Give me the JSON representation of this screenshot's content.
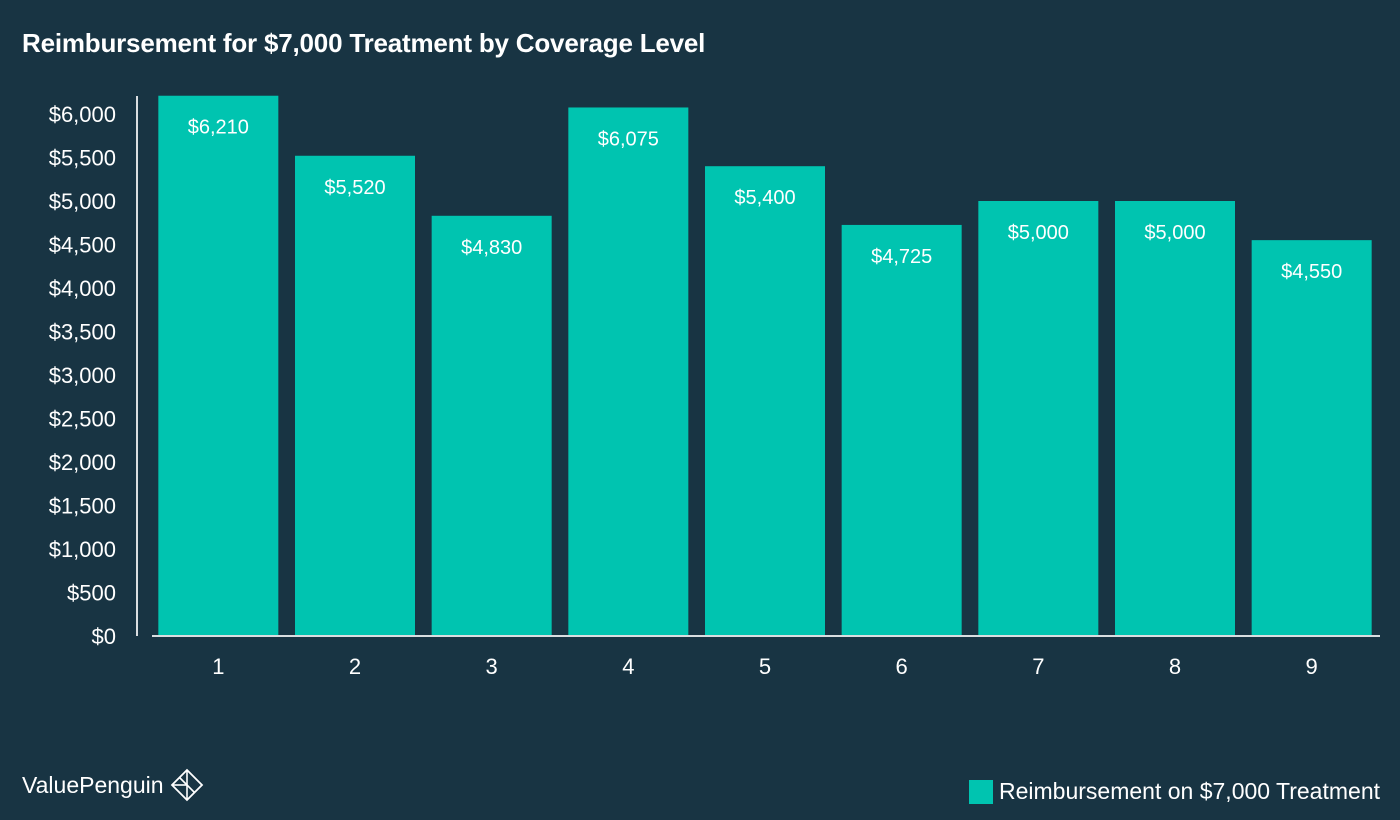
{
  "colors": {
    "background": "#183443",
    "bar": "#00c4b0",
    "text": "#ffffff",
    "axis": "#d9dde0"
  },
  "brand": {
    "name": "ValuePenguin",
    "icon": "diamond-logo-icon"
  },
  "chart_data": {
    "type": "bar",
    "title": "Reimbursement for $7,000 Treatment by Coverage Level",
    "xlabel": "",
    "ylabel": "",
    "categories": [
      "1",
      "2",
      "3",
      "4",
      "5",
      "6",
      "7",
      "8",
      "9"
    ],
    "series": [
      {
        "name": "Reimbursement on $7,000 Treatment",
        "values": [
          6210,
          5520,
          4830,
          6075,
          5400,
          4725,
          5000,
          5000,
          4550
        ],
        "data_labels": [
          "$6,210",
          "$5,520",
          "$4,830",
          "$6,075",
          "$5,400",
          "$4,725",
          "$5,000",
          "$5,000",
          "$4,550"
        ]
      }
    ],
    "ylim": [
      0,
      6000
    ],
    "yticks": [
      0,
      500,
      1000,
      1500,
      2000,
      2500,
      3000,
      3500,
      4000,
      4500,
      5000,
      5500,
      6000
    ],
    "ytick_labels": [
      "$0",
      "$500",
      "$1,000",
      "$1,500",
      "$2,000",
      "$2,500",
      "$3,000",
      "$3,500",
      "$4,000",
      "$4,500",
      "$5,000",
      "$5,500",
      "$6,000"
    ],
    "grid": false,
    "legend": {
      "placement": "bottom-right",
      "label": "Reimbursement on $7,000 Treatment"
    }
  }
}
